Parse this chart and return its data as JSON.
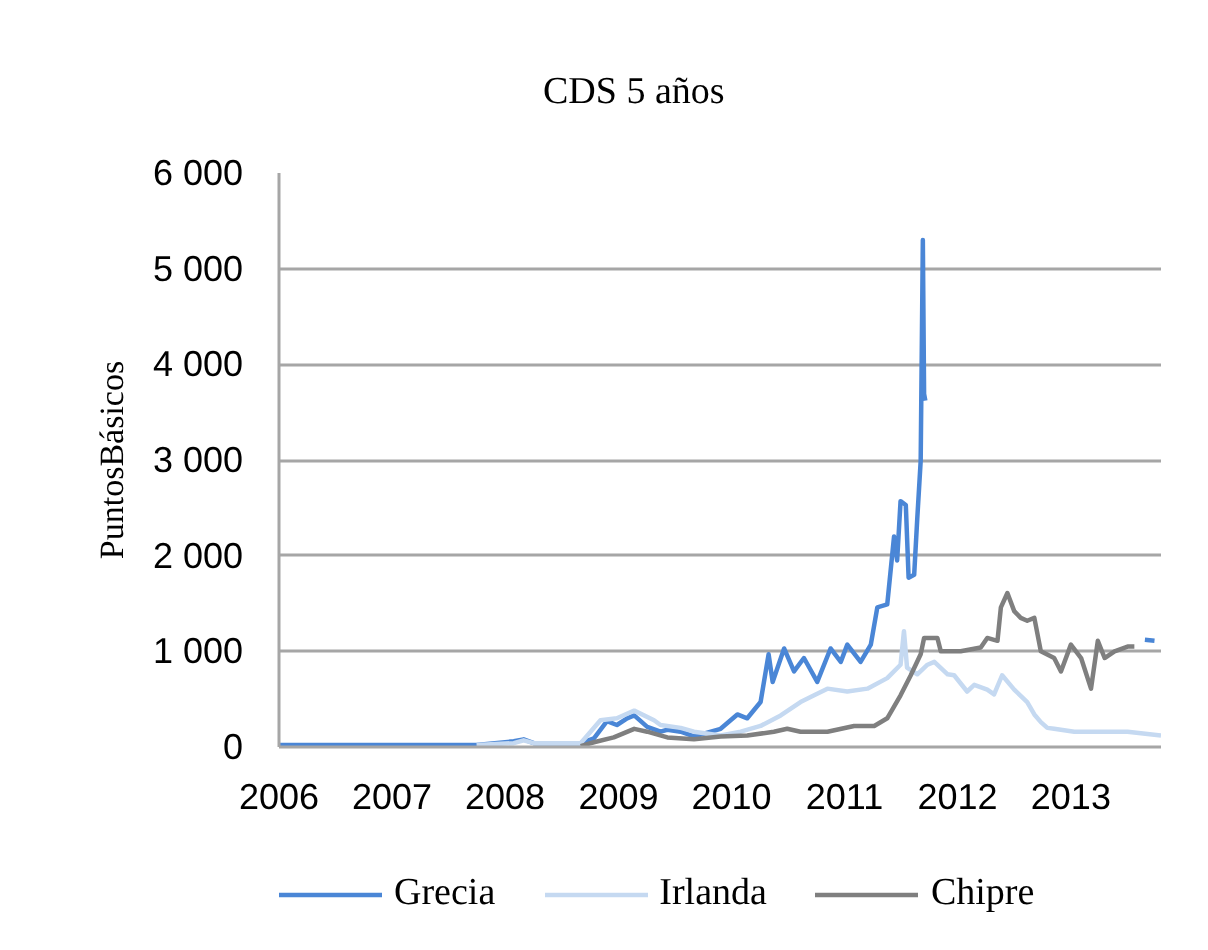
{
  "chart_data": {
    "type": "line",
    "title": "CDS 5 años",
    "ylabel": "PuntosBásicos",
    "xlim": [
      "2006-01-01",
      "2013-10-19"
    ],
    "xticks": [
      "2006",
      "2007",
      "2008",
      "2009",
      "2010",
      "2011",
      "2012",
      "2013"
    ],
    "ylim": [
      0,
      6000
    ],
    "yticks": [
      0,
      {
        "value": 1000,
        "label": "1 000"
      },
      {
        "value": 2000,
        "label": "2 000"
      },
      {
        "value": 3000,
        "label": "3 000"
      },
      {
        "value": 4000,
        "label": "4 000"
      },
      {
        "value": 5000,
        "label": "5 000"
      },
      {
        "value": 6000,
        "label": "6 000"
      }
    ],
    "grid": "y",
    "legend": "bottom",
    "marker": "none",
    "line_style": "solid",
    "series": [
      {
        "name": "Grecia",
        "color": "#4a86d6",
        "x": [
          "2006-01-01",
          "2007-10-01",
          "2008-01-29",
          "2008-03-01",
          "2008-04-03",
          "2008-09-01",
          "2008-10-14",
          "2008-11-25",
          "2008-12-27",
          "2009-01-29",
          "2009-02-21",
          "2009-04-04",
          "2009-05-17",
          "2009-06-08",
          "2009-07-21",
          "2009-09-02",
          "2009-11-27",
          "2010-01-20",
          "2010-02-21",
          "2010-04-05",
          "2010-05-01",
          "2010-05-14",
          "2010-06-20",
          "2010-07-22",
          "2010-08-23",
          "2010-10-05",
          "2010-11-17",
          "2010-12-20",
          "2011-01-10",
          "2011-02-22",
          "2011-03-27",
          "2011-04-17",
          "2011-05-19",
          "2011-06-10",
          "2011-06-20",
          "2011-07-01",
          "2011-07-18",
          "2011-07-27",
          "2011-08-14",
          "2011-08-24",
          "2011-09-04",
          "2011-09-11",
          "2011-09-15",
          "2011-09-19",
          "2012-06-01",
          "2013-08-28",
          "2013-09-28"
        ],
        "values": [
          20,
          20,
          60,
          80,
          40,
          40,
          90,
          270,
          230,
          300,
          330,
          210,
          160,
          180,
          160,
          110,
          190,
          340,
          300,
          470,
          970,
          680,
          1030,
          790,
          930,
          680,
          1030,
          890,
          1070,
          890,
          1070,
          1460,
          1490,
          2200,
          1950,
          2570,
          2530,
          1770,
          1800,
          2390,
          2990,
          5300,
          3690,
          3620,
          null,
          1120,
          1110
        ]
      },
      {
        "name": "Irlanda",
        "color": "#c5d9f1",
        "x": [
          "2007-10-01",
          "2008-01-29",
          "2008-03-01",
          "2008-04-03",
          "2008-09-01",
          "2008-11-04",
          "2008-12-27",
          "2009-02-21",
          "2009-04-26",
          "2009-05-17",
          "2009-07-21",
          "2009-09-02",
          "2009-11-27",
          "2010-01-31",
          "2010-04-05",
          "2010-06-09",
          "2010-08-12",
          "2010-09-25",
          "2010-11-07",
          "2011-01-10",
          "2011-03-16",
          "2011-05-19",
          "2011-07-01",
          "2011-07-12",
          "2011-07-22",
          "2011-08-24",
          "2011-09-26",
          "2011-10-18",
          "2011-11-30",
          "2011-12-21",
          "2012-02-01",
          "2012-02-24",
          "2012-04-06",
          "2012-04-28",
          "2012-05-24",
          "2012-07-02",
          "2012-08-13",
          "2012-09-05",
          "2012-09-26",
          "2012-10-17",
          "2012-11-08",
          "2013-01-12",
          "2013-02-24",
          "2013-07-03",
          "2013-10-19"
        ],
        "values": [
          20,
          40,
          70,
          40,
          40,
          280,
          300,
          380,
          280,
          230,
          200,
          160,
          120,
          160,
          220,
          330,
          470,
          540,
          610,
          580,
          610,
          720,
          860,
          1210,
          830,
          760,
          860,
          890,
          760,
          750,
          580,
          650,
          600,
          550,
          750,
          600,
          470,
          340,
          260,
          200,
          190,
          160,
          160,
          160,
          120
        ]
      },
      {
        "name": "Chipre",
        "color": "#7f7f7f",
        "x": [
          "2008-09-01",
          "2008-10-14",
          "2008-12-17",
          "2009-02-21",
          "2009-04-04",
          "2009-06-08",
          "2009-09-02",
          "2009-11-27",
          "2010-02-21",
          "2010-05-18",
          "2010-06-30",
          "2010-08-12",
          "2010-11-07",
          "2011-02-01",
          "2011-04-07",
          "2011-05-19",
          "2011-07-01",
          "2011-08-03",
          "2011-09-04",
          "2011-09-15",
          "2011-10-28",
          "2011-11-08",
          "2012-01-11",
          "2012-03-16",
          "2012-04-06",
          "2012-05-09",
          "2012-05-20",
          "2012-06-10",
          "2012-07-02",
          "2012-07-23",
          "2012-08-13",
          "2012-09-05",
          "2012-09-26",
          "2012-11-08",
          "2012-11-30",
          "2013-01-01",
          "2013-02-03",
          "2013-03-07",
          "2013-03-29",
          "2013-04-20",
          "2013-05-22",
          "2013-07-03",
          "2013-07-25"
        ],
        "values": [
          10,
          50,
          100,
          190,
          160,
          100,
          80,
          110,
          120,
          160,
          190,
          160,
          160,
          220,
          220,
          300,
          540,
          750,
          970,
          1140,
          1140,
          1000,
          1000,
          1040,
          1140,
          1110,
          1460,
          1610,
          1420,
          1350,
          1320,
          1350,
          1000,
          930,
          790,
          1070,
          930,
          610,
          1110,
          930,
          1000,
          1050,
          1050
        ]
      }
    ]
  }
}
